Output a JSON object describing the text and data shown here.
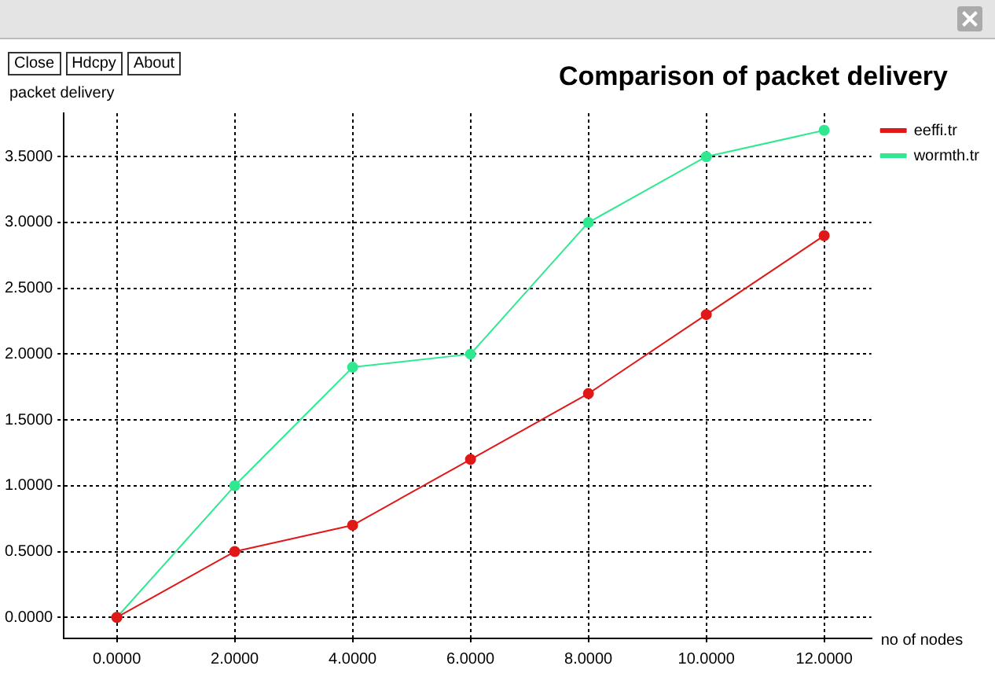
{
  "chart_data": {
    "type": "line",
    "title": "Comparison of packet delivery",
    "xlabel": "no of nodes",
    "ylabel": "packet delivery",
    "annotations": [
      "Close",
      "Hdcpy",
      "About"
    ],
    "x": [
      0,
      2,
      4,
      6,
      8,
      10,
      12
    ],
    "series": [
      {
        "name": "eeffi.tr",
        "color": "#e01818",
        "values": [
          0,
          0.5,
          0.7,
          1.2,
          1.7,
          2.3,
          2.9
        ]
      },
      {
        "name": "wormth.tr",
        "color": "#30e890",
        "values": [
          0,
          1.0,
          1.9,
          2.0,
          3.0,
          3.5,
          3.7
        ]
      }
    ],
    "xlim": [
      -0.9,
      12.8
    ],
    "ylim": [
      -0.16,
      3.83
    ],
    "xticks": [
      {
        "value": 0,
        "label": "0.0000"
      },
      {
        "value": 2,
        "label": "2.0000"
      },
      {
        "value": 4,
        "label": "4.0000"
      },
      {
        "value": 6,
        "label": "6.0000"
      },
      {
        "value": 8,
        "label": "8.0000"
      },
      {
        "value": 10,
        "label": "10.0000"
      },
      {
        "value": 12,
        "label": "12.0000"
      }
    ],
    "yticks": [
      {
        "value": 0,
        "label": "0.0000"
      },
      {
        "value": 0.5,
        "label": "0.5000"
      },
      {
        "value": 1,
        "label": "1.0000"
      },
      {
        "value": 1.5,
        "label": "1.5000"
      },
      {
        "value": 2,
        "label": "2.0000"
      },
      {
        "value": 2.5,
        "label": "2.5000"
      },
      {
        "value": 3,
        "label": "3.0000"
      },
      {
        "value": 3.5,
        "label": "3.5000"
      }
    ],
    "grid": true,
    "legend": "top right",
    "marker": "circle",
    "line_style": "solid"
  }
}
